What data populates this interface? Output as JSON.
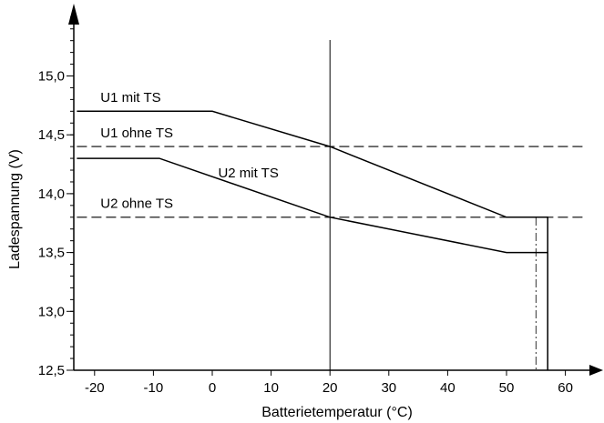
{
  "chart_data": {
    "type": "line",
    "title": "",
    "xlabel": "Batterietemperatur (°C)",
    "ylabel": "Ladespannung (V)",
    "xlim": [
      -23,
      63
    ],
    "ylim": [
      12.5,
      15.5
    ],
    "x_ticks": [
      -20,
      -10,
      0,
      10,
      20,
      30,
      40,
      50,
      60
    ],
    "x_tick_labels": [
      "-20",
      "-10",
      "0",
      "10",
      "20",
      "30",
      "40",
      "50",
      "60"
    ],
    "y_ticks": [
      12.5,
      13.0,
      13.5,
      14.0,
      14.5,
      15.0
    ],
    "y_tick_labels": [
      "12,5",
      "13,0",
      "13,5",
      "14,0",
      "14,5",
      "15,0"
    ],
    "y_minor_step": 0.1,
    "grid": false,
    "reference_lines": [
      {
        "axis": "x",
        "value": 20,
        "style": "solid"
      },
      {
        "axis": "x",
        "value": 55,
        "style": "dash-dot"
      }
    ],
    "series": [
      {
        "name": "U1 mit TS",
        "style": "solid",
        "points": [
          [
            -23,
            14.7
          ],
          [
            0,
            14.7
          ],
          [
            20,
            14.4
          ],
          [
            50,
            13.8
          ],
          [
            57,
            13.8
          ],
          [
            57,
            12.5
          ]
        ]
      },
      {
        "name": "U2 mit TS",
        "style": "solid",
        "points": [
          [
            -23,
            14.3
          ],
          [
            -9,
            14.3
          ],
          [
            20,
            13.8
          ],
          [
            50,
            13.5
          ],
          [
            57,
            13.5
          ]
        ]
      },
      {
        "name": "U1 ohne TS",
        "style": "dashed",
        "points": [
          [
            -23,
            14.4
          ],
          [
            63,
            14.4
          ]
        ]
      },
      {
        "name": "U2 ohne TS",
        "style": "dashed",
        "points": [
          [
            -23,
            13.8
          ],
          [
            63,
            13.8
          ]
        ]
      }
    ],
    "annotations": [
      {
        "text": "U1 mit TS",
        "series": "U1 mit TS",
        "x": -19,
        "y": 14.78
      },
      {
        "text": "U1 ohne TS",
        "series": "U1 ohne TS",
        "x": -19,
        "y": 14.48
      },
      {
        "text": "U2 mit TS",
        "series": "U2 mit TS",
        "x": 1,
        "y": 14.14
      },
      {
        "text": "U2 ohne TS",
        "series": "U2 ohne TS",
        "x": -19,
        "y": 13.88
      }
    ]
  }
}
